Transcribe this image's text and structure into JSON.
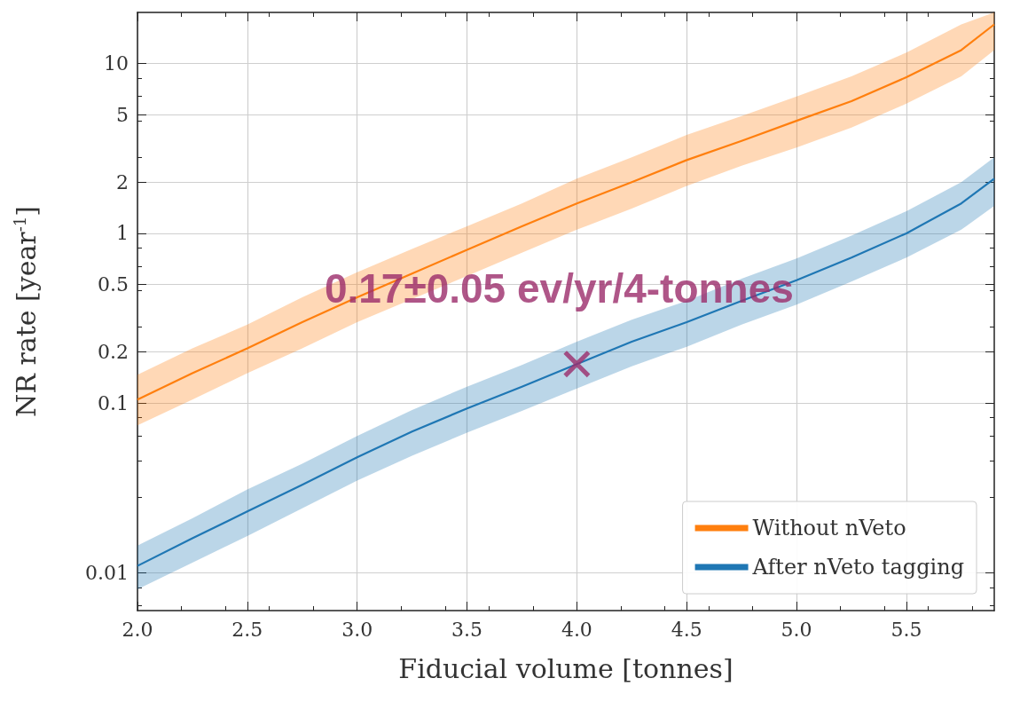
{
  "chart_data": {
    "type": "line",
    "xlabel": "Fiducial volume [tonnes]",
    "ylabel": "NR rate [year$^{-1}$]",
    "log": "y",
    "grid": true,
    "legend": "bottom right",
    "marker": "none",
    "line_style": "solid",
    "xlim": [
      2.0,
      5.9
    ],
    "ylim": [
      0.006,
      20
    ],
    "xticks": [
      {
        "value": 2,
        "label": "2.0"
      },
      {
        "value": 2.5,
        "label": "2.5"
      },
      {
        "value": 3,
        "label": "3.0"
      },
      {
        "value": 3.5,
        "label": "3.5"
      },
      {
        "value": 4,
        "label": "4.0"
      },
      {
        "value": 4.5,
        "label": "4.5"
      },
      {
        "value": 5,
        "label": "5.0"
      },
      {
        "value": 5.5,
        "label": "5.5"
      }
    ],
    "yticks": [
      0.01,
      0.1,
      0.2,
      0.5,
      1,
      2,
      5,
      10
    ],
    "x": [
      2.0,
      2.25,
      2.5,
      2.75,
      3.0,
      3.25,
      3.5,
      3.75,
      4.0,
      4.25,
      4.5,
      4.75,
      5.0,
      5.25,
      5.5,
      5.75,
      5.9
    ],
    "series": [
      {
        "name": "Without nVeto",
        "color": "#ff7f0e",
        "values": [
          0.105,
          0.15,
          0.21,
          0.3,
          0.42,
          0.58,
          0.8,
          1.1,
          1.5,
          2.0,
          2.7,
          3.5,
          4.6,
          6.0,
          8.3,
          12,
          17
        ],
        "lower": [
          0.074,
          0.105,
          0.15,
          0.21,
          0.3,
          0.41,
          0.56,
          0.77,
          1.05,
          1.4,
          1.9,
          2.5,
          3.2,
          4.2,
          5.8,
          8.4,
          12
        ],
        "upper": [
          0.147,
          0.21,
          0.29,
          0.42,
          0.59,
          0.81,
          1.1,
          1.5,
          2.1,
          2.8,
          3.8,
          4.9,
          6.4,
          8.4,
          11.6,
          17,
          20
        ]
      },
      {
        "name": "After nVeto tagging",
        "color": "#1f77b4",
        "values": [
          0.011,
          0.016,
          0.023,
          0.033,
          0.048,
          0.068,
          0.093,
          0.125,
          0.17,
          0.23,
          0.3,
          0.4,
          0.53,
          0.72,
          1.0,
          1.5,
          2.1
        ],
        "lower": [
          0.008,
          0.0115,
          0.0165,
          0.024,
          0.035,
          0.049,
          0.067,
          0.09,
          0.122,
          0.165,
          0.215,
          0.29,
          0.38,
          0.52,
          0.72,
          1.05,
          1.45
        ],
        "upper": [
          0.0145,
          0.021,
          0.031,
          0.044,
          0.064,
          0.091,
          0.125,
          0.168,
          0.23,
          0.31,
          0.4,
          0.54,
          0.71,
          0.97,
          1.35,
          2.0,
          2.8
        ]
      },
      {
        "type": "scatter",
        "marker": "cross",
        "color": "#9b2c6a",
        "x": [
          4.0
        ],
        "values": [
          0.17
        ]
      }
    ],
    "annotations": [
      {
        "text": "0.17±0.05 ev/yr/4-tonnes",
        "x": 4.0,
        "y": 0.17
      }
    ]
  }
}
